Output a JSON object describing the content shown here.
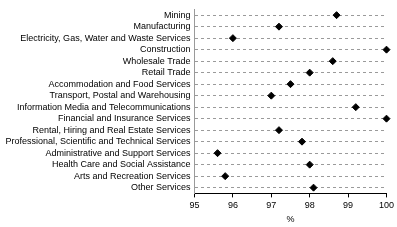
{
  "chart_data": {
    "type": "scatter",
    "orientation": "horizontal",
    "categories": [
      "Mining",
      "Manufacturing",
      "Electricity, Gas, Water and Waste Services",
      "Construction",
      "Wholesale Trade",
      "Retail Trade",
      "Accommodation and Food Services",
      "Transport, Postal and Warehousing",
      "Information Media and Telecommunications",
      "Financial and Insurance Services",
      "Rental, Hiring and Real Estate Services",
      "Professional, Scientific and Technical Services",
      "Administrative and Support Services",
      "Health Care and Social Assistance",
      "Arts and Recreation Services",
      "Other Services"
    ],
    "values": [
      98.7,
      97.2,
      96.0,
      100.0,
      98.6,
      98.0,
      97.5,
      97.0,
      99.2,
      100.0,
      97.2,
      97.8,
      95.6,
      98.0,
      95.8,
      98.1
    ],
    "color": "#000000",
    "marker": "diamond",
    "grid": true,
    "x_label": "%",
    "xlim": [
      95,
      100
    ],
    "xticks": [
      95,
      96,
      97,
      98,
      99,
      100
    ]
  }
}
